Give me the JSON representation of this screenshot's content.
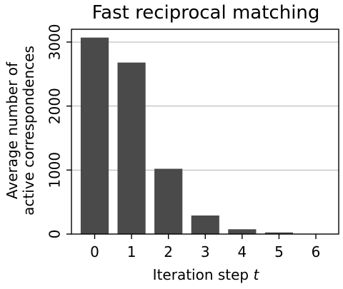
{
  "chart_data": {
    "type": "bar",
    "title": "Fast reciprocal matching",
    "xlabel": "Iteration step t",
    "xlabel_main": "Iteration step ",
    "xlabel_var": "t",
    "ylabel": "Average number of active correspondences",
    "ylabel_lines": [
      "Average number of",
      "active correspondences"
    ],
    "categories": [
      "0",
      "1",
      "2",
      "3",
      "4",
      "5",
      "6"
    ],
    "values": [
      3070,
      2680,
      1020,
      290,
      75,
      25,
      5
    ],
    "ylim": [
      0,
      3200
    ],
    "yticks": [
      0,
      1000,
      2000,
      3000
    ],
    "ytick_labels": [
      "0",
      "1000",
      "2000",
      "3000"
    ],
    "grid": "horizontal",
    "colors": {
      "bar": "#4a4a4a",
      "grid": "#b0b0b0",
      "axis": "#000000"
    }
  }
}
